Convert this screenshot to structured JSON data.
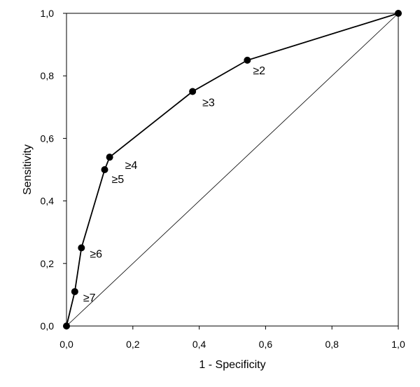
{
  "chart_data": {
    "type": "line",
    "title": "",
    "xlabel": "1 - Specificity",
    "ylabel": "Sensitivity",
    "xlim": [
      0,
      1
    ],
    "ylim": [
      0,
      1
    ],
    "x_ticks": [
      "0,0",
      "0,2",
      "0,4",
      "0,6",
      "0,8",
      "1,0"
    ],
    "y_ticks": [
      "0,0",
      "0,2",
      "0,4",
      "0,6",
      "0,8",
      "1,0"
    ],
    "grid": false,
    "legend": "none",
    "reference_line": {
      "x": [
        0,
        1
      ],
      "y": [
        0,
        1
      ]
    },
    "series": [
      {
        "points": [
          {
            "x": 0.0,
            "y": 0.0,
            "label": ""
          },
          {
            "x": 0.025,
            "y": 0.11,
            "label": "≥7"
          },
          {
            "x": 0.045,
            "y": 0.25,
            "label": "≥6"
          },
          {
            "x": 0.115,
            "y": 0.5,
            "label": "≥5"
          },
          {
            "x": 0.13,
            "y": 0.54,
            "label": "≥4"
          },
          {
            "x": 0.38,
            "y": 0.75,
            "label": "≥3"
          },
          {
            "x": 0.545,
            "y": 0.85,
            "label": "≥2"
          },
          {
            "x": 1.0,
            "y": 1.0,
            "label": ""
          }
        ]
      }
    ],
    "colors": {
      "line": "#000000",
      "marker": "#000000"
    }
  }
}
